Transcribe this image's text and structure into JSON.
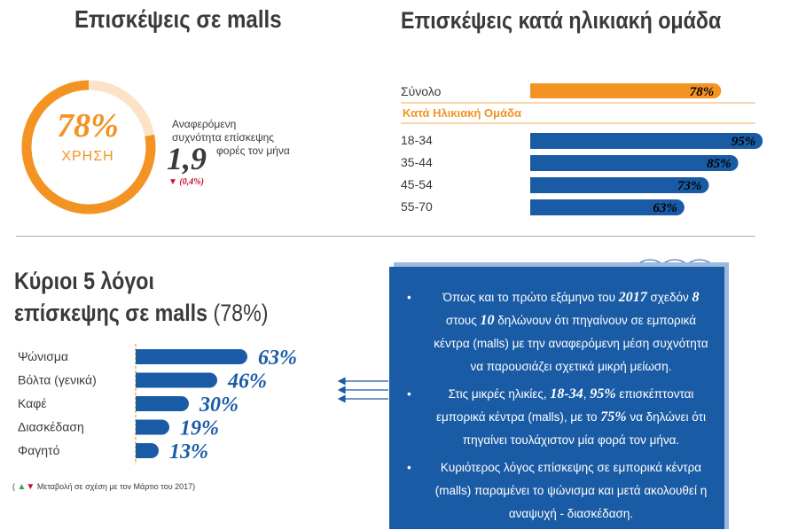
{
  "header": {
    "title_left": "Επισκέψεις σε malls",
    "title_right": "Επισκέψεις κατά ηλικιακή ομάδα"
  },
  "usage": {
    "percent_label": "78%",
    "percent_value": 78,
    "caption": "ΧΡΗΣΗ",
    "freq_label_line1": "Αναφερόμενη",
    "freq_label_line2": "συχνότητα επίσκεψης",
    "freq_value": "1,9",
    "freq_unit": "φορές τον μήνα",
    "freq_change": "(0,4%)"
  },
  "chart_data": [
    {
      "type": "bar",
      "title": "Επισκέψεις κατά ηλικιακή ομάδα",
      "orientation": "horizontal",
      "total": {
        "label": "Σύνολο",
        "value": 78,
        "value_label": "78%",
        "color": "#f39323"
      },
      "group_title": "Κατά Ηλικιακή Ομάδα",
      "categories": [
        "18-34",
        "35-44",
        "45-54",
        "55-70"
      ],
      "values": [
        95,
        85,
        73,
        63
      ],
      "value_labels": [
        "95%",
        "85%",
        "73%",
        "63%"
      ],
      "color": "#1a5ba5",
      "xlim": [
        0,
        100
      ]
    },
    {
      "type": "bar",
      "title_line1": "Κύριοι 5 λόγοι",
      "title_line2": "επίσκεψης σε malls",
      "title_suffix": "(78%)",
      "orientation": "horizontal",
      "categories": [
        "Ψώνισμα",
        "Βόλτα (γενικά)",
        "Καφέ",
        "Διασκέδαση",
        "Φαγητό"
      ],
      "values": [
        63,
        46,
        30,
        19,
        13
      ],
      "value_labels": [
        "63%",
        "46%",
        "30%",
        "19%",
        "13%"
      ],
      "color": "#1a5ba5",
      "xlim": [
        0,
        100
      ]
    }
  ],
  "legend_note": "Μεταβολή σε σχέση με τον Μάρτιο του 2017)",
  "legend_paren": "(",
  "info": {
    "b1_t1": "Όπως και το πρώτο εξάμηνο του ",
    "b1_e1": "2017",
    "b1_t2": " σχεδόν ",
    "b1_e2": "8",
    "b1_t3": " στους ",
    "b1_e3": "10",
    "b1_t4": " δηλώνουν ότι πηγαίνουν σε εμπορικά κέντρα (malls) με την αναφερόμενη μέση συχνότητα να παρουσιάζει σχετικά μικρή μείωση.",
    "b2_t1": "Στις μικρές ηλικίες, ",
    "b2_e1": "18-34",
    "b2_t2": ", ",
    "b2_e2": "95%",
    "b2_t3": " επισκέπτονται εμπορικά κέντρα (malls), με το ",
    "b2_e3": "75%",
    "b2_t4": " να δηλώνει ότι πηγαίνει τουλάχιστον μία φορά τον μήνα.",
    "b3": "Κυριότερος λόγος επίσκεψης σε εμπορικά κέντρα (malls) παραμένει το ψώνισμα και μετά ακολουθεί η αναψυχή - διασκέδαση."
  }
}
